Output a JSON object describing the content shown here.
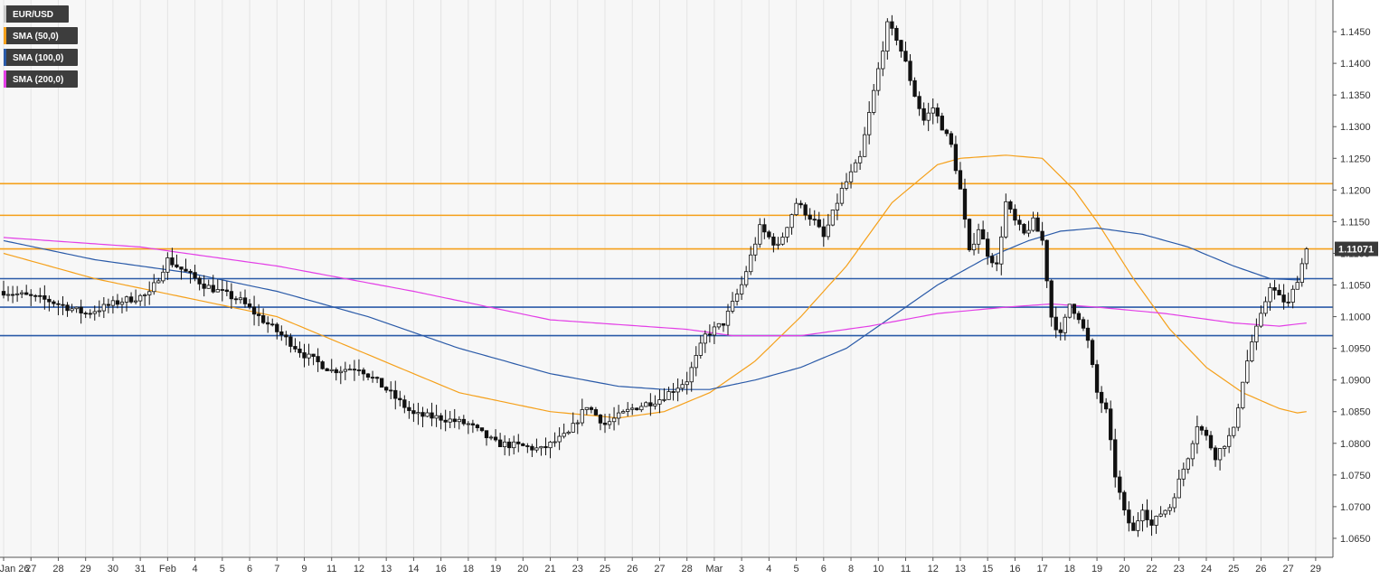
{
  "chart_data": {
    "type": "candlestick",
    "title": "EUR/USD",
    "symbol": "EUR/USD",
    "timeframe": "4h",
    "ylim": [
      1.062,
      1.15
    ],
    "grid": {
      "vertical": true,
      "horizontal": false
    },
    "legend_placement": "top-left",
    "y_ticks": [
      "1.0650",
      "1.0700",
      "1.0750",
      "1.0800",
      "1.0850",
      "1.0900",
      "1.0950",
      "1.1000",
      "1.1050",
      "1.1100",
      "1.1150",
      "1.1200",
      "1.1250",
      "1.1300",
      "1.1350",
      "1.1400",
      "1.1450"
    ],
    "x_ticks": [
      {
        "label": "Jan 26",
        "bar": 0
      },
      {
        "label": "27",
        "bar": 6
      },
      {
        "label": "28",
        "bar": 12
      },
      {
        "label": "29",
        "bar": 18
      },
      {
        "label": "30",
        "bar": 24
      },
      {
        "label": "31",
        "bar": 30
      },
      {
        "label": "Feb",
        "bar": 36
      },
      {
        "label": "4",
        "bar": 42
      },
      {
        "label": "5",
        "bar": 48
      },
      {
        "label": "6",
        "bar": 54
      },
      {
        "label": "7",
        "bar": 60
      },
      {
        "label": "9",
        "bar": 66
      },
      {
        "label": "11",
        "bar": 72
      },
      {
        "label": "12",
        "bar": 78
      },
      {
        "label": "13",
        "bar": 84
      },
      {
        "label": "14",
        "bar": 90
      },
      {
        "label": "16",
        "bar": 96
      },
      {
        "label": "18",
        "bar": 102
      },
      {
        "label": "19",
        "bar": 108
      },
      {
        "label": "20",
        "bar": 114
      },
      {
        "label": "21",
        "bar": 120
      },
      {
        "label": "23",
        "bar": 126
      },
      {
        "label": "25",
        "bar": 132
      },
      {
        "label": "26",
        "bar": 138
      },
      {
        "label": "27",
        "bar": 144
      },
      {
        "label": "28",
        "bar": 150
      },
      {
        "label": "Mar",
        "bar": 156
      },
      {
        "label": "3",
        "bar": 162
      },
      {
        "label": "4",
        "bar": 168
      },
      {
        "label": "5",
        "bar": 174
      },
      {
        "label": "6",
        "bar": 180
      },
      {
        "label": "8",
        "bar": 186
      },
      {
        "label": "10",
        "bar": 192
      },
      {
        "label": "11",
        "bar": 198
      },
      {
        "label": "12",
        "bar": 204
      },
      {
        "label": "13",
        "bar": 210
      },
      {
        "label": "15",
        "bar": 216
      },
      {
        "label": "16",
        "bar": 222
      },
      {
        "label": "17",
        "bar": 228
      },
      {
        "label": "18",
        "bar": 234
      },
      {
        "label": "19",
        "bar": 240
      },
      {
        "label": "20",
        "bar": 246
      },
      {
        "label": "22",
        "bar": 252
      },
      {
        "label": "23",
        "bar": 258
      },
      {
        "label": "24",
        "bar": 264
      },
      {
        "label": "25",
        "bar": 270
      },
      {
        "label": "26",
        "bar": 276
      },
      {
        "label": "27",
        "bar": 282
      },
      {
        "label": "29",
        "bar": 288
      }
    ],
    "total_bars": 291,
    "close_path": [
      [
        0,
        1.104
      ],
      [
        10,
        1.1025
      ],
      [
        18,
        1.1005
      ],
      [
        26,
        1.1025
      ],
      [
        32,
        1.1035
      ],
      [
        36,
        1.109
      ],
      [
        44,
        1.105
      ],
      [
        52,
        1.1025
      ],
      [
        56,
        1.1
      ],
      [
        62,
        1.0965
      ],
      [
        66,
        1.094
      ],
      [
        72,
        1.0915
      ],
      [
        78,
        1.092
      ],
      [
        84,
        1.0885
      ],
      [
        90,
        1.0845
      ],
      [
        96,
        1.084
      ],
      [
        102,
        1.083
      ],
      [
        108,
        1.08
      ],
      [
        114,
        1.0795
      ],
      [
        118,
        1.079
      ],
      [
        124,
        1.0815
      ],
      [
        128,
        1.086
      ],
      [
        132,
        1.083
      ],
      [
        138,
        1.0855
      ],
      [
        144,
        1.087
      ],
      [
        150,
        1.09
      ],
      [
        154,
        1.097
      ],
      [
        158,
        1.099
      ],
      [
        162,
        1.105
      ],
      [
        166,
        1.114
      ],
      [
        170,
        1.111
      ],
      [
        174,
        1.118
      ],
      [
        178,
        1.115
      ],
      [
        180,
        1.1125
      ],
      [
        184,
        1.12
      ],
      [
        188,
        1.125
      ],
      [
        190,
        1.132
      ],
      [
        192,
        1.139
      ],
      [
        194,
        1.146
      ],
      [
        196,
        1.144
      ],
      [
        198,
        1.14
      ],
      [
        200,
        1.135
      ],
      [
        202,
        1.131
      ],
      [
        204,
        1.133
      ],
      [
        206,
        1.13
      ],
      [
        208,
        1.127
      ],
      [
        210,
        1.12
      ],
      [
        212,
        1.11
      ],
      [
        214,
        1.114
      ],
      [
        216,
        1.11
      ],
      [
        218,
        1.108
      ],
      [
        220,
        1.118
      ],
      [
        222,
        1.115
      ],
      [
        224,
        1.113
      ],
      [
        226,
        1.115
      ],
      [
        228,
        1.112
      ],
      [
        230,
        1.1
      ],
      [
        232,
        1.097
      ],
      [
        234,
        1.102
      ],
      [
        236,
        1.1
      ],
      [
        238,
        1.096
      ],
      [
        240,
        1.088
      ],
      [
        242,
        1.085
      ],
      [
        244,
        1.075
      ],
      [
        246,
        1.069
      ],
      [
        248,
        1.066
      ],
      [
        250,
        1.07
      ],
      [
        252,
        1.067
      ],
      [
        254,
        1.069
      ],
      [
        256,
        1.07
      ],
      [
        258,
        1.074
      ],
      [
        260,
        1.078
      ],
      [
        262,
        1.083
      ],
      [
        264,
        1.081
      ],
      [
        266,
        1.078
      ],
      [
        268,
        1.08
      ],
      [
        270,
        1.082
      ],
      [
        272,
        1.09
      ],
      [
        274,
        1.096
      ],
      [
        276,
        1.1
      ],
      [
        278,
        1.105
      ],
      [
        280,
        1.103
      ],
      [
        282,
        1.102
      ],
      [
        284,
        1.106
      ],
      [
        286,
        1.1107
      ]
    ],
    "series": [
      {
        "name": "SMA (50,0)",
        "color": "#f5a01a",
        "points": [
          [
            0,
            1.11
          ],
          [
            20,
            1.106
          ],
          [
            40,
            1.103
          ],
          [
            60,
            1.1
          ],
          [
            80,
            1.094
          ],
          [
            100,
            1.088
          ],
          [
            120,
            1.085
          ],
          [
            135,
            1.084
          ],
          [
            145,
            1.085
          ],
          [
            155,
            1.088
          ],
          [
            165,
            1.093
          ],
          [
            175,
            1.1
          ],
          [
            185,
            1.108
          ],
          [
            195,
            1.118
          ],
          [
            205,
            1.124
          ],
          [
            210,
            1.125
          ],
          [
            220,
            1.1255
          ],
          [
            228,
            1.125
          ],
          [
            235,
            1.12
          ],
          [
            240,
            1.115
          ],
          [
            248,
            1.106
          ],
          [
            256,
            1.098
          ],
          [
            264,
            1.092
          ],
          [
            272,
            1.088
          ],
          [
            280,
            1.0855
          ],
          [
            284,
            1.0848
          ],
          [
            286,
            1.085
          ]
        ]
      },
      {
        "name": "SMA (100,0)",
        "color": "#2a5aa8",
        "points": [
          [
            0,
            1.112
          ],
          [
            20,
            1.109
          ],
          [
            40,
            1.107
          ],
          [
            60,
            1.104
          ],
          [
            80,
            1.1
          ],
          [
            100,
            1.095
          ],
          [
            120,
            1.091
          ],
          [
            135,
            1.089
          ],
          [
            145,
            1.0885
          ],
          [
            155,
            1.0885
          ],
          [
            165,
            1.09
          ],
          [
            175,
            1.092
          ],
          [
            185,
            1.095
          ],
          [
            195,
            1.1
          ],
          [
            205,
            1.105
          ],
          [
            215,
            1.109
          ],
          [
            225,
            1.112
          ],
          [
            232,
            1.1135
          ],
          [
            240,
            1.114
          ],
          [
            250,
            1.113
          ],
          [
            260,
            1.111
          ],
          [
            270,
            1.108
          ],
          [
            278,
            1.106
          ],
          [
            284,
            1.1058
          ],
          [
            286,
            1.106
          ]
        ]
      },
      {
        "name": "SMA (200,0)",
        "color": "#e33ee6",
        "points": [
          [
            0,
            1.1125
          ],
          [
            30,
            1.111
          ],
          [
            60,
            1.108
          ],
          [
            90,
            1.104
          ],
          [
            120,
            1.0995
          ],
          [
            150,
            1.098
          ],
          [
            160,
            1.097
          ],
          [
            175,
            1.097
          ],
          [
            190,
            1.0985
          ],
          [
            205,
            1.1005
          ],
          [
            220,
            1.1015
          ],
          [
            230,
            1.102
          ],
          [
            240,
            1.1015
          ],
          [
            255,
            1.1005
          ],
          [
            270,
            1.099
          ],
          [
            280,
            1.0985
          ],
          [
            286,
            1.099
          ]
        ]
      }
    ],
    "horizontal_levels": [
      {
        "value": 1.121,
        "color": "#f5a01a"
      },
      {
        "value": 1.116,
        "color": "#f5a01a"
      },
      {
        "value": 1.1107,
        "color": "#f5a01a"
      },
      {
        "value": 1.106,
        "color": "#2a5aa8"
      },
      {
        "value": 1.1015,
        "color": "#2a5aa8"
      },
      {
        "value": 1.097,
        "color": "#2a5aa8"
      }
    ],
    "last_price": {
      "value": 1.1107,
      "label": "1.11071"
    }
  },
  "legend": [
    {
      "label": "EUR/USD",
      "color": "#111111"
    },
    {
      "label": "SMA (50,0)",
      "color": "#f5a01a"
    },
    {
      "label": "SMA (100,0)",
      "color": "#2a5aa8"
    },
    {
      "label": "SMA (200,0)",
      "color": "#e33ee6"
    }
  ]
}
